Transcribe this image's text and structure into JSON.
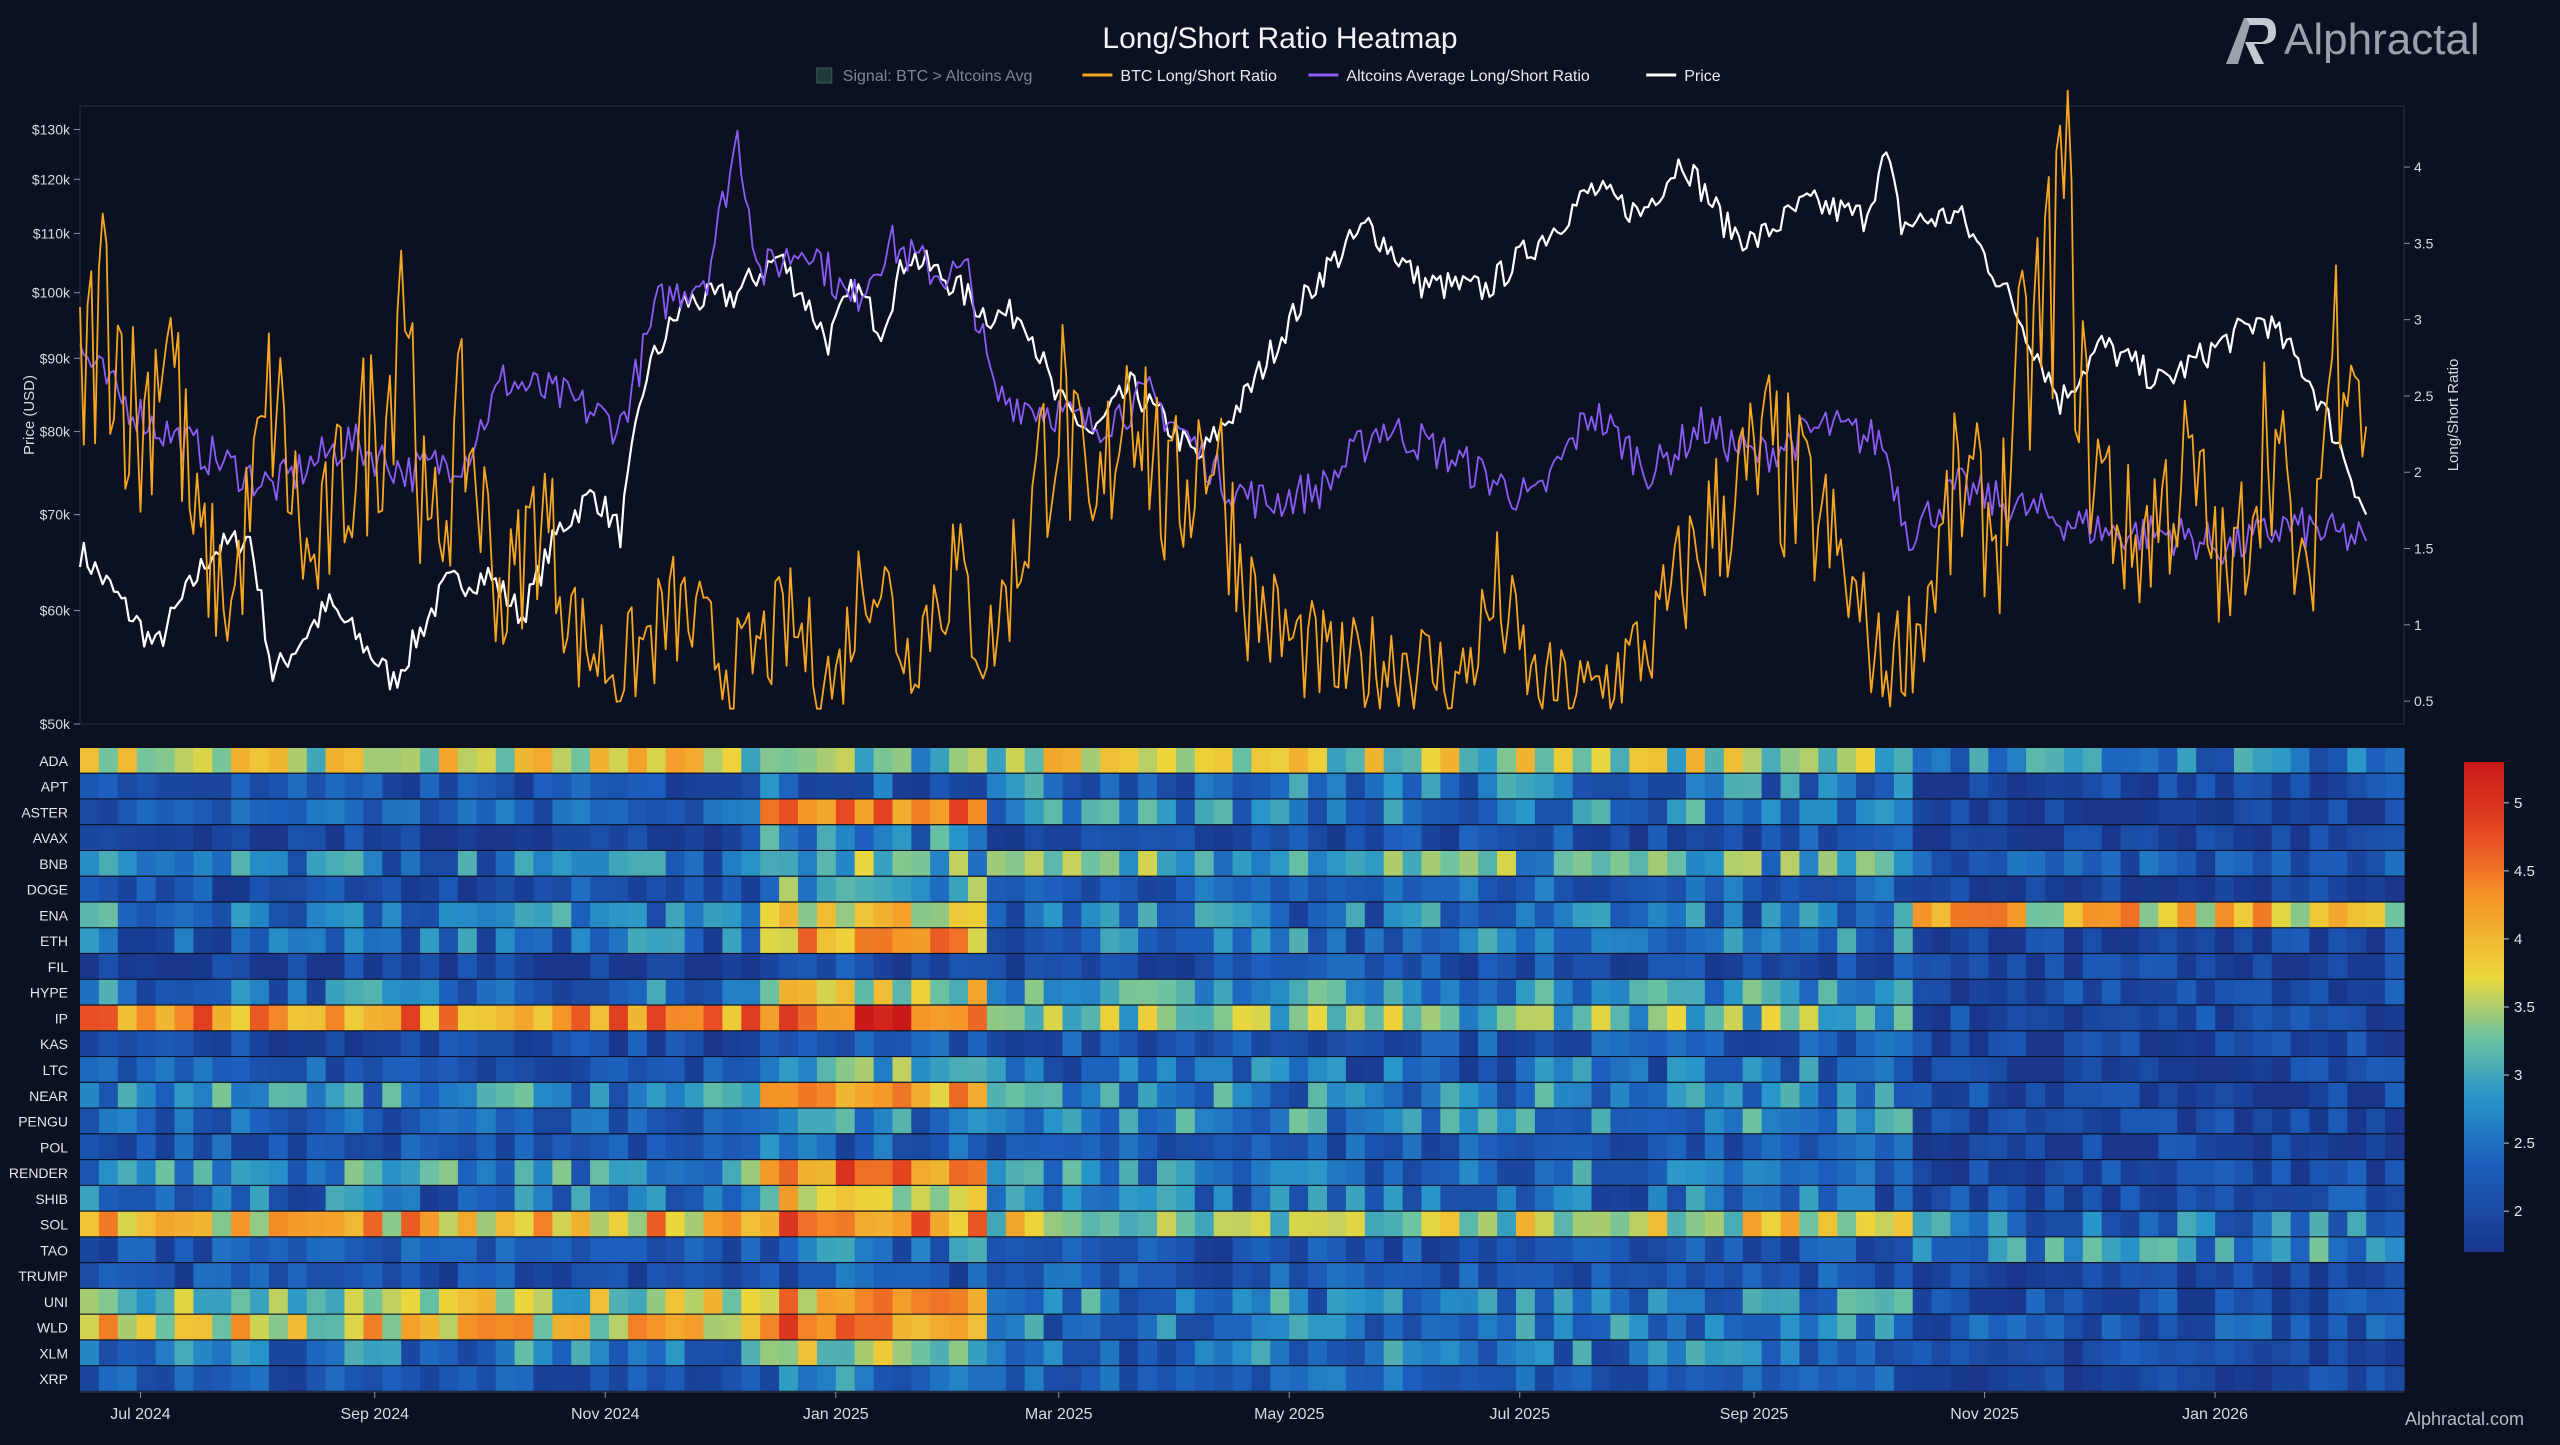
{
  "title": "Long/Short Ratio Heatmap",
  "brand": {
    "name": "Alphractal",
    "footer": "Alphractal.com",
    "logo_icon": "alphractal-logo-icon"
  },
  "legend": [
    {
      "label": "Signal: BTC > Altcoins Avg",
      "kind": "box",
      "color": "#1d3b3a",
      "muted": true
    },
    {
      "label": "BTC Long/Short Ratio",
      "kind": "line",
      "color": "#f5a623"
    },
    {
      "label": "Altcoins Average Long/Short Ratio",
      "kind": "line",
      "color": "#8b5cf6"
    },
    {
      "label": "Price",
      "kind": "line",
      "color": "#ffffff"
    }
  ],
  "colors": {
    "btc": "#f5a623",
    "alts": "#8b5cf6",
    "price": "#ffffff",
    "background": "#0b1120"
  },
  "chart_data": [
    {
      "type": "line",
      "title": "Long/Short Ratio Heatmap",
      "ylabel": "Price (USD)",
      "y2label": "Long/Short Ratio",
      "y_scale": "log",
      "ylim": [
        50000,
        135000
      ],
      "y_ticks": [
        50000,
        60000,
        70000,
        80000,
        90000,
        100000,
        110000,
        120000,
        130000
      ],
      "y_tick_labels": [
        "$50k",
        "$60k",
        "$70k",
        "$80k",
        "$90k",
        "$100k",
        "$110k",
        "$120k",
        "$130k"
      ],
      "y2lim": [
        0.35,
        4.4
      ],
      "y2_ticks": [
        0.5,
        1,
        1.5,
        2,
        2.5,
        3,
        3.5,
        4
      ],
      "y2_tick_labels": [
        "0.5",
        "1",
        "1.5",
        "2",
        "2.5",
        "3",
        "3.5",
        "4"
      ],
      "xlim": [
        "2024-06-15",
        "2026-02-20"
      ],
      "x_ticks": [
        "2024-07-01",
        "2024-09-01",
        "2024-11-01",
        "2025-01-01",
        "2025-03-01",
        "2025-05-01",
        "2025-07-01",
        "2025-09-01",
        "2025-11-01",
        "2026-01-01"
      ],
      "x_tick_labels": [
        "Jul 2024",
        "Sep 2024",
        "Nov 2024",
        "Jan 2025",
        "Mar 2025",
        "May 2025",
        "Jul 2025",
        "Sep 2025",
        "Nov 2025",
        "Jan 2026"
      ],
      "grid": false,
      "legend_position": "top-center",
      "series": [
        {
          "name": "Price",
          "axis": "left",
          "color": "#ffffff",
          "points": [
            [
              "2024-06-15",
              66000
            ],
            [
              "2024-07-05",
              56500
            ],
            [
              "2024-07-20",
              66000
            ],
            [
              "2024-07-30",
              67500
            ],
            [
              "2024-08-05",
              54000
            ],
            [
              "2024-08-20",
              60500
            ],
            [
              "2024-09-06",
              53500
            ],
            [
              "2024-09-20",
              62500
            ],
            [
              "2024-10-01",
              63500
            ],
            [
              "2024-10-10",
              59500
            ],
            [
              "2024-10-20",
              68500
            ],
            [
              "2024-10-29",
              72500
            ],
            [
              "2024-11-05",
              68000
            ],
            [
              "2024-11-12",
              88000
            ],
            [
              "2024-11-22",
              98500
            ],
            [
              "2024-12-05",
              99500
            ],
            [
              "2024-12-17",
              106000
            ],
            [
              "2024-12-30",
              92500
            ],
            [
              "2025-01-06",
              101000
            ],
            [
              "2025-01-13",
              94500
            ],
            [
              "2025-01-20",
              106500
            ],
            [
              "2025-02-01",
              101500
            ],
            [
              "2025-02-10",
              96500
            ],
            [
              "2025-02-20",
              96500
            ],
            [
              "2025-02-28",
              84500
            ],
            [
              "2025-03-10",
              79500
            ],
            [
              "2025-03-20",
              86000
            ],
            [
              "2025-04-07",
              76500
            ],
            [
              "2025-04-20",
              85000
            ],
            [
              "2025-04-30",
              94500
            ],
            [
              "2025-05-10",
              103500
            ],
            [
              "2025-05-22",
              111500
            ],
            [
              "2025-06-05",
              101500
            ],
            [
              "2025-06-22",
              100500
            ],
            [
              "2025-07-10",
              111000
            ],
            [
              "2025-07-20",
              118000
            ],
            [
              "2025-08-02",
              113500
            ],
            [
              "2025-08-13",
              124000
            ],
            [
              "2025-08-25",
              111000
            ],
            [
              "2025-09-01",
              108500
            ],
            [
              "2025-09-15",
              115500
            ],
            [
              "2025-09-30",
              113000
            ],
            [
              "2025-10-06",
              124500
            ],
            [
              "2025-10-10",
              111500
            ],
            [
              "2025-10-25",
              113500
            ],
            [
              "2025-11-04",
              103000
            ],
            [
              "2025-11-21",
              84000
            ],
            [
              "2025-12-02",
              92000
            ],
            [
              "2025-12-18",
              86500
            ],
            [
              "2026-01-05",
              93000
            ],
            [
              "2026-01-14",
              96000
            ],
            [
              "2026-01-25",
              88000
            ],
            [
              "2026-02-05",
              76000
            ],
            [
              "2026-02-10",
              70000
            ]
          ]
        },
        {
          "name": "Altcoins Average Long/Short Ratio",
          "axis": "right",
          "color": "#8b5cf6",
          "points": [
            [
              "2024-06-15",
              2.8
            ],
            [
              "2024-06-25",
              2.5
            ],
            [
              "2024-07-05",
              2.3
            ],
            [
              "2024-07-20",
              2.1
            ],
            [
              "2024-08-05",
              1.9
            ],
            [
              "2024-08-25",
              2.2
            ],
            [
              "2024-09-10",
              2.0
            ],
            [
              "2024-09-25",
              2.1
            ],
            [
              "2024-10-05",
              2.6
            ],
            [
              "2024-10-20",
              2.5
            ],
            [
              "2024-11-05",
              2.3
            ],
            [
              "2024-11-15",
              3.1
            ],
            [
              "2024-11-28",
              3.3
            ],
            [
              "2024-12-06",
              4.2
            ],
            [
              "2024-12-12",
              3.3
            ],
            [
              "2024-12-25",
              3.5
            ],
            [
              "2025-01-05",
              3.1
            ],
            [
              "2025-01-15",
              3.5
            ],
            [
              "2025-01-28",
              3.3
            ],
            [
              "2025-02-05",
              3.3
            ],
            [
              "2025-02-12",
              2.5
            ],
            [
              "2025-02-28",
              2.4
            ],
            [
              "2025-03-10",
              2.3
            ],
            [
              "2025-03-25",
              2.5
            ],
            [
              "2025-04-05",
              2.2
            ],
            [
              "2025-04-15",
              1.9
            ],
            [
              "2025-04-25",
              1.8
            ],
            [
              "2025-05-10",
              1.9
            ],
            [
              "2025-05-25",
              2.3
            ],
            [
              "2025-06-05",
              2.2
            ],
            [
              "2025-06-20",
              2.0
            ],
            [
              "2025-07-05",
              1.8
            ],
            [
              "2025-07-20",
              2.4
            ],
            [
              "2025-08-05",
              2.0
            ],
            [
              "2025-08-18",
              2.3
            ],
            [
              "2025-09-01",
              2.1
            ],
            [
              "2025-09-20",
              2.3
            ],
            [
              "2025-10-05",
              2.2
            ],
            [
              "2025-10-12",
              1.6
            ],
            [
              "2025-10-25",
              1.9
            ],
            [
              "2025-11-05",
              1.8
            ],
            [
              "2025-11-20",
              1.7
            ],
            [
              "2025-12-05",
              1.6
            ],
            [
              "2025-12-20",
              1.6
            ],
            [
              "2026-01-05",
              1.5
            ],
            [
              "2026-01-20",
              1.65
            ],
            [
              "2026-02-10",
              1.55
            ]
          ]
        },
        {
          "name": "BTC Long/Short Ratio",
          "axis": "right",
          "color": "#f5a623",
          "points": [
            [
              "2024-06-15",
              2.5
            ],
            [
              "2024-06-22",
              3.2
            ],
            [
              "2024-07-01",
              2.2
            ],
            [
              "2024-07-08",
              3.1
            ],
            [
              "2024-07-15",
              1.6
            ],
            [
              "2024-07-25",
              1.1
            ],
            [
              "2024-08-05",
              2.5
            ],
            [
              "2024-08-15",
              1.3
            ],
            [
              "2024-08-25",
              2.0
            ],
            [
              "2024-09-05",
              2.5
            ],
            [
              "2024-09-08",
              3.6
            ],
            [
              "2024-09-15",
              1.4
            ],
            [
              "2024-09-25",
              2.3
            ],
            [
              "2024-10-05",
              1.1
            ],
            [
              "2024-10-15",
              1.8
            ],
            [
              "2024-10-25",
              0.9
            ],
            [
              "2024-11-05",
              0.7
            ],
            [
              "2024-11-20",
              1.1
            ],
            [
              "2024-12-05",
              0.7
            ],
            [
              "2024-12-20",
              1.0
            ],
            [
              "2025-01-01",
              0.6
            ],
            [
              "2025-01-10",
              1.5
            ],
            [
              "2025-01-20",
              0.8
            ],
            [
              "2025-02-01",
              1.4
            ],
            [
              "2025-02-10",
              0.8
            ],
            [
              "2025-02-20",
              1.6
            ],
            [
              "2025-03-01",
              2.5
            ],
            [
              "2025-03-10",
              1.5
            ],
            [
              "2025-03-20",
              2.8
            ],
            [
              "2025-03-30",
              1.7
            ],
            [
              "2025-04-10",
              2.3
            ],
            [
              "2025-04-20",
              1.2
            ],
            [
              "2025-05-01",
              0.9
            ],
            [
              "2025-05-15",
              0.7
            ],
            [
              "2025-06-01",
              0.8
            ],
            [
              "2025-06-15",
              0.6
            ],
            [
              "2025-06-25",
              1.2
            ],
            [
              "2025-07-05",
              0.6
            ],
            [
              "2025-07-20",
              0.55
            ],
            [
              "2025-08-05",
              0.9
            ],
            [
              "2025-08-15",
              1.4
            ],
            [
              "2025-08-25",
              1.8
            ],
            [
              "2025-09-05",
              2.1
            ],
            [
              "2025-09-20",
              1.6
            ],
            [
              "2025-10-05",
              0.7
            ],
            [
              "2025-10-15",
              1.0
            ],
            [
              "2025-10-25",
              1.9
            ],
            [
              "2025-11-05",
              1.6
            ],
            [
              "2025-11-10",
              2.5
            ],
            [
              "2025-11-18",
              3.2
            ],
            [
              "2025-11-22",
              3.9
            ],
            [
              "2025-11-28",
              2.2
            ],
            [
              "2025-12-10",
              1.5
            ],
            [
              "2025-12-25",
              2.0
            ],
            [
              "2026-01-05",
              1.2
            ],
            [
              "2026-01-15",
              2.4
            ],
            [
              "2026-01-25",
              1.1
            ],
            [
              "2026-02-01",
              2.8
            ],
            [
              "2026-02-05",
              3.2
            ],
            [
              "2026-02-10",
              2.3
            ]
          ]
        }
      ]
    },
    {
      "type": "heatmap",
      "colorbar_ticks": [
        2,
        2.5,
        3,
        3.5,
        4,
        4.5,
        5
      ],
      "colorbar_tick_labels": [
        "2",
        "2.5",
        "3",
        "3.5",
        "4",
        "4.5",
        "5"
      ],
      "colorbar_range": [
        1.7,
        5.3
      ],
      "period_boundaries": [
        "2024-12-10",
        "2025-02-10",
        "2025-10-12"
      ],
      "rows": [
        {
          "name": "ADA",
          "levels": [
            3.6,
            3.2,
            3.5,
            2.6
          ]
        },
        {
          "name": "APT",
          "levels": [
            2.1,
            2.4,
            2.5,
            2.0
          ]
        },
        {
          "name": "ASTER",
          "levels": [
            2.3,
            4.6,
            2.6,
            1.9
          ]
        },
        {
          "name": "AVAX",
          "levels": [
            1.9,
            2.6,
            2.1,
            1.9
          ]
        },
        {
          "name": "BNB",
          "levels": [
            2.5,
            3.1,
            3.0,
            2.2
          ]
        },
        {
          "name": "DOGE",
          "levels": [
            2.1,
            3.0,
            2.3,
            1.9
          ]
        },
        {
          "name": "ENA",
          "levels": [
            2.6,
            3.8,
            2.5,
            3.9
          ]
        },
        {
          "name": "ETH",
          "levels": [
            2.4,
            4.2,
            2.5,
            1.9
          ]
        },
        {
          "name": "FIL",
          "levels": [
            1.9,
            2.0,
            2.1,
            1.9
          ]
        },
        {
          "name": "HYPE",
          "levels": [
            2.5,
            3.7,
            2.8,
            2.0
          ]
        },
        {
          "name": "IP",
          "levels": [
            4.4,
            4.8,
            3.2,
            2.0
          ]
        },
        {
          "name": "KAS",
          "levels": [
            2.0,
            2.2,
            2.2,
            1.9
          ]
        },
        {
          "name": "LTC",
          "levels": [
            2.2,
            3.0,
            2.4,
            1.9
          ]
        },
        {
          "name": "NEAR",
          "levels": [
            2.7,
            4.3,
            2.6,
            2.0
          ]
        },
        {
          "name": "PENGU",
          "levels": [
            2.3,
            2.6,
            2.7,
            1.9
          ]
        },
        {
          "name": "POL",
          "levels": [
            2.2,
            2.5,
            2.2,
            1.9
          ]
        },
        {
          "name": "RENDER",
          "levels": [
            2.8,
            4.4,
            2.6,
            2.0
          ]
        },
        {
          "name": "SHIB",
          "levels": [
            2.4,
            3.6,
            2.4,
            2.1
          ]
        },
        {
          "name": "SOL",
          "levels": [
            4.0,
            4.4,
            3.6,
            2.5
          ]
        },
        {
          "name": "TAO",
          "levels": [
            2.2,
            2.5,
            2.1,
            2.8
          ]
        },
        {
          "name": "TRUMP",
          "levels": [
            2.1,
            2.4,
            2.2,
            1.9
          ]
        },
        {
          "name": "UNI",
          "levels": [
            3.4,
            4.0,
            2.6,
            2.1
          ]
        },
        {
          "name": "WLD",
          "levels": [
            3.8,
            4.4,
            2.5,
            2.2
          ]
        },
        {
          "name": "XLM",
          "levels": [
            2.6,
            3.3,
            2.5,
            2.0
          ]
        },
        {
          "name": "XRP",
          "levels": [
            2.2,
            2.6,
            2.3,
            1.9
          ]
        }
      ]
    }
  ]
}
